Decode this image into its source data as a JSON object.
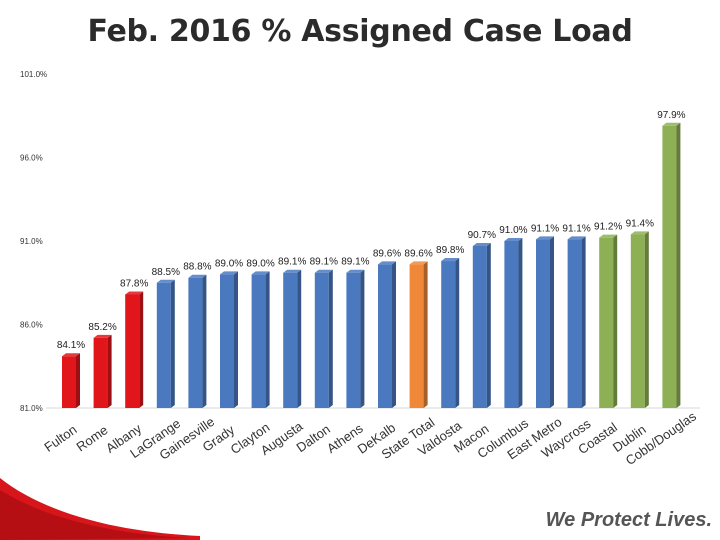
{
  "chart_data": {
    "type": "bar",
    "title": "Feb. 2016 % Assigned Case Load",
    "ylim": [
      81.0,
      101.0
    ],
    "yticks": [
      "101.0%",
      "96.0%",
      "91.0%",
      "86.0%",
      "81.0%"
    ],
    "ytick_values": [
      101.0,
      96.0,
      91.0,
      86.0,
      81.0
    ],
    "categories": [
      "Fulton",
      "Rome",
      "Albany",
      "LaGrange",
      "Gainesville",
      "Grady",
      "Clayton",
      "Augusta",
      "Dalton",
      "Athens",
      "DeKalb",
      "State Total",
      "Valdosta",
      "Macon",
      "Columbus",
      "East Metro",
      "Waycross",
      "Coastal",
      "Dublin",
      "Cobb/Douglas"
    ],
    "values": [
      84.1,
      85.2,
      87.8,
      88.5,
      88.8,
      89.0,
      89.0,
      89.1,
      89.1,
      89.1,
      89.6,
      89.6,
      89.8,
      90.7,
      91.0,
      91.1,
      91.1,
      91.2,
      91.4,
      97.9
    ],
    "labels": [
      "84.1%",
      "85.2%",
      "87.8%",
      "88.5%",
      "88.8%",
      "89.0%",
      "89.0%",
      "89.1%",
      "89.1%",
      "89.1%",
      "89.6%",
      "89.6%",
      "89.8%",
      "90.7%",
      "91.0%",
      "91.1%",
      "91.1%",
      "91.2%",
      "91.4%",
      "97.9%"
    ],
    "bar_colors": [
      "#e0161b",
      "#e0161b",
      "#e0161b",
      "#4a79c0",
      "#4a79c0",
      "#4a79c0",
      "#4a79c0",
      "#4a79c0",
      "#4a79c0",
      "#4a79c0",
      "#4a79c0",
      "#f0883a",
      "#4a79c0",
      "#4a79c0",
      "#4a79c0",
      "#4a79c0",
      "#4a79c0",
      "#8db055",
      "#8db055",
      "#8db055"
    ]
  },
  "footer": {
    "tagline": "We Protect Lives."
  },
  "colors": {
    "swoosh": "#d7161b"
  }
}
